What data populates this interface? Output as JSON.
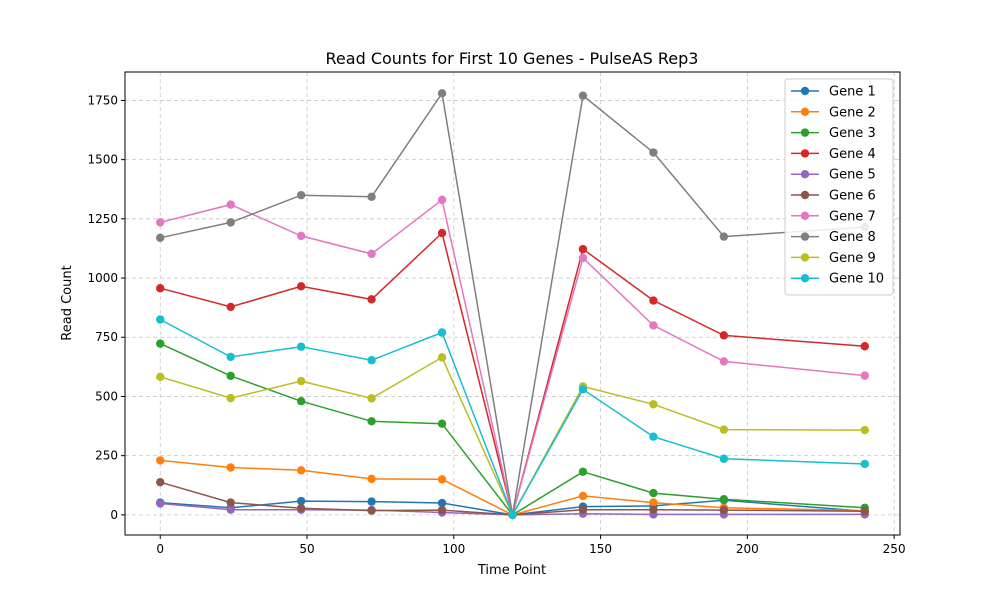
{
  "chart_data": {
    "type": "line",
    "title": "Read Counts for First 10 Genes - PulseAS Rep3",
    "xlabel": "Time Point",
    "ylabel": "Read Count",
    "xlim": [
      -12,
      252
    ],
    "ylim": [
      -85,
      1870
    ],
    "xticks": [
      0,
      50,
      100,
      150,
      200,
      250
    ],
    "yticks": [
      0,
      250,
      500,
      750,
      1000,
      1250,
      1500,
      1750
    ],
    "grid": true,
    "legend_position": "top-right",
    "x": [
      0,
      24,
      48,
      72,
      96,
      120,
      144,
      168,
      192,
      240
    ],
    "series": [
      {
        "name": "Gene 1",
        "color": "#1f77b4",
        "values": [
          52,
          30,
          58,
          56,
          50,
          0,
          35,
          38,
          62,
          15
        ]
      },
      {
        "name": "Gene 2",
        "color": "#ff7f0e",
        "values": [
          230,
          200,
          188,
          152,
          150,
          0,
          80,
          52,
          30,
          18
        ]
      },
      {
        "name": "Gene 3",
        "color": "#2ca02c",
        "values": [
          723,
          587,
          480,
          395,
          385,
          0,
          182,
          92,
          66,
          30
        ]
      },
      {
        "name": "Gene 4",
        "color": "#d62728",
        "values": [
          957,
          878,
          965,
          910,
          1190,
          0,
          1122,
          905,
          758,
          712
        ]
      },
      {
        "name": "Gene 5",
        "color": "#9467bd",
        "values": [
          48,
          22,
          22,
          20,
          10,
          0,
          5,
          2,
          2,
          2
        ]
      },
      {
        "name": "Gene 6",
        "color": "#8c564b",
        "values": [
          138,
          52,
          28,
          18,
          20,
          0,
          22,
          22,
          20,
          15
        ]
      },
      {
        "name": "Gene 7",
        "color": "#e377c2",
        "values": [
          1235,
          1310,
          1178,
          1102,
          1330,
          0,
          1085,
          800,
          648,
          588
        ]
      },
      {
        "name": "Gene 8",
        "color": "#7f7f7f",
        "values": [
          1170,
          1235,
          1350,
          1343,
          1780,
          0,
          1770,
          1530,
          1175,
          1215
        ]
      },
      {
        "name": "Gene 9",
        "color": "#bcbd22",
        "values": [
          583,
          493,
          565,
          492,
          665,
          0,
          542,
          467,
          360,
          358
        ]
      },
      {
        "name": "Gene 10",
        "color": "#17becf",
        "values": [
          825,
          667,
          710,
          653,
          770,
          0,
          530,
          330,
          237,
          215
        ]
      }
    ]
  }
}
